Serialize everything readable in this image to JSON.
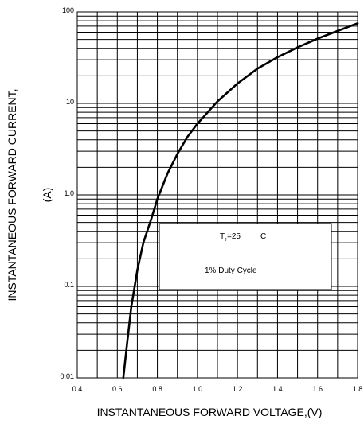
{
  "chart_data": {
    "type": "line",
    "xlabel": "INSTANTANEOUS FORWARD VOLTAGE,(V)",
    "ylabel_line1": "INSTANTANEOUS FORWARD CURRENT,",
    "ylabel_line2": "(A)",
    "xlim": [
      0.4,
      1.8
    ],
    "ylim": [
      0.01,
      100
    ],
    "yscale": "log",
    "grid": true,
    "x_ticks": [
      "0.4",
      "0.6",
      "0.8",
      "1.0",
      "1.2",
      "1.4",
      "1.6",
      "1.8"
    ],
    "y_ticks": [
      "0.01",
      "0.1",
      "1.0",
      "10",
      "100"
    ],
    "annotation": {
      "temp_T": "T",
      "temp_sub": "J",
      "temp_value": "=25",
      "temp_unit": "C",
      "duty": "1% Duty Cycle"
    },
    "series": [
      {
        "x": [
          0.63,
          0.65,
          0.67,
          0.7,
          0.73,
          0.77,
          0.8,
          0.85,
          0.9,
          0.95,
          1.0,
          1.1,
          1.2,
          1.3,
          1.4,
          1.5,
          1.6,
          1.7,
          1.8
        ],
        "y": [
          0.01,
          0.025,
          0.06,
          0.15,
          0.3,
          0.55,
          0.9,
          1.7,
          2.8,
          4.3,
          6.0,
          10.5,
          16.5,
          24,
          32,
          41,
          51,
          62,
          75
        ]
      }
    ]
  }
}
